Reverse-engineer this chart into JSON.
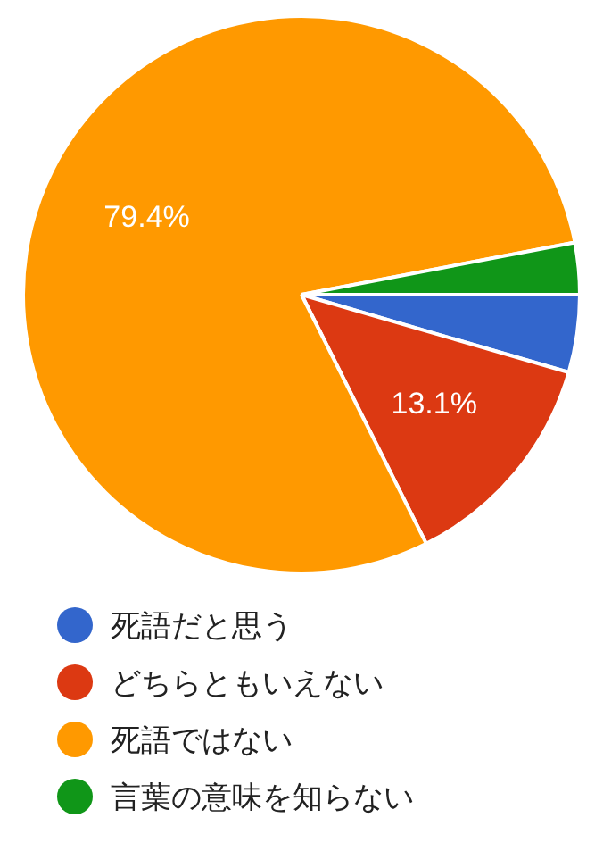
{
  "chart_data": {
    "type": "pie",
    "categories": [
      "死語だと思う",
      "どちらともいえない",
      "死語ではない",
      "言葉の意味を知らない"
    ],
    "values": [
      4.5,
      13.1,
      79.4,
      3.0
    ],
    "colors": [
      "#3366cc",
      "#dc3912",
      "#ff9900",
      "#109618"
    ],
    "value_labels": [
      null,
      "13.1%",
      "79.4%",
      null
    ],
    "legend": "bottom"
  }
}
